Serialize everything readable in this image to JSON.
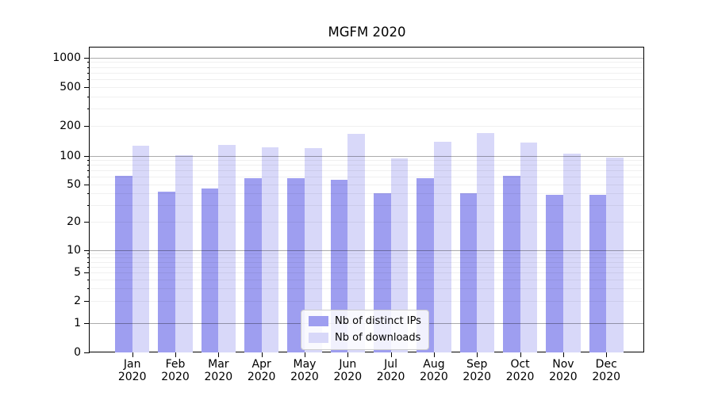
{
  "figure": {
    "title": "MGFM 2020"
  },
  "chart_data": {
    "type": "bar",
    "title": "MGFM 2020",
    "categories": [
      "Jan 2020",
      "Feb 2020",
      "Mar 2020",
      "Apr 2020",
      "May 2020",
      "Jun 2020",
      "Jul 2020",
      "Aug 2020",
      "Sep 2020",
      "Oct 2020",
      "Nov 2020",
      "Dec 2020"
    ],
    "x_months": [
      "Jan",
      "Feb",
      "Mar",
      "Apr",
      "May",
      "Jun",
      "Jul",
      "Aug",
      "Sep",
      "Oct",
      "Nov",
      "Dec"
    ],
    "x_year": "2020",
    "series": [
      {
        "name": "Nb of distinct IPs",
        "color": "#9e9ef0",
        "values": [
          61,
          42,
          45,
          58,
          58,
          56,
          40,
          58,
          40,
          61,
          39,
          39
        ]
      },
      {
        "name": "Nb of downloads",
        "color": "#d8d8f9",
        "values": [
          126,
          101,
          130,
          122,
          119,
          167,
          93,
          139,
          170,
          136,
          105,
          95
        ]
      }
    ],
    "xlabel": "",
    "ylabel": "",
    "yscale": "symlog",
    "y_ticks": [
      0,
      1,
      2,
      5,
      10,
      20,
      50,
      100,
      200,
      500,
      1000
    ],
    "ylim": [
      0,
      1300
    ],
    "grid": true,
    "legend_position": "lower center",
    "colors": {
      "major_grid": "#aaaaaa",
      "minor_grid": "#ebebeb",
      "axis": "#000000",
      "background": "#ffffff"
    }
  }
}
